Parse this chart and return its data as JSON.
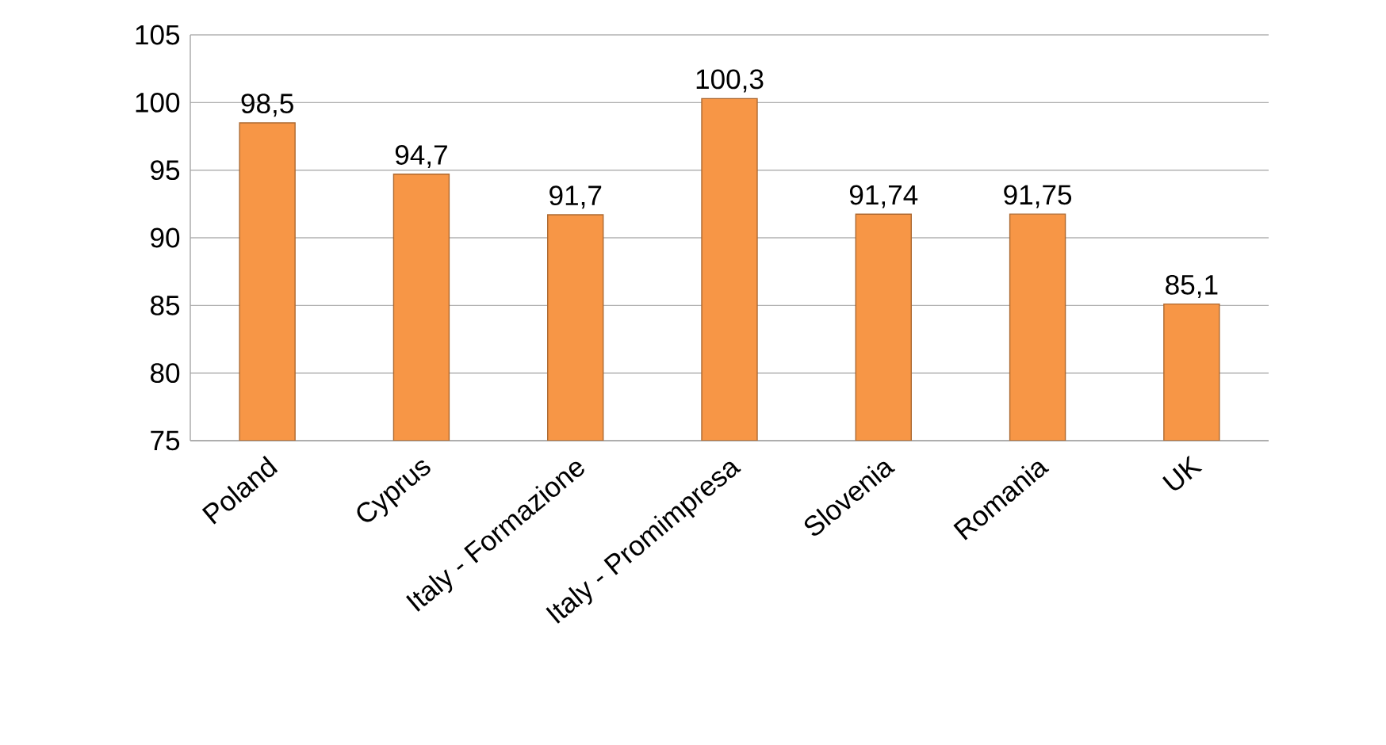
{
  "chart_data": {
    "type": "bar",
    "categories": [
      "Poland",
      "Cyprus",
      "Italy - Formazione",
      "Italy - Promimpresa",
      "Slovenia",
      "Romania",
      "UK"
    ],
    "values": [
      98.5,
      94.7,
      91.7,
      100.3,
      91.74,
      91.75,
      85.1
    ],
    "value_labels": [
      "98,5",
      "94,7",
      "91,7",
      "100,3",
      "91,74",
      "91,75",
      "85,1"
    ],
    "color": "#f79646",
    "ylim": [
      75,
      105
    ],
    "yticks": [
      75,
      80,
      85,
      90,
      95,
      100,
      105
    ],
    "grid": "y"
  }
}
